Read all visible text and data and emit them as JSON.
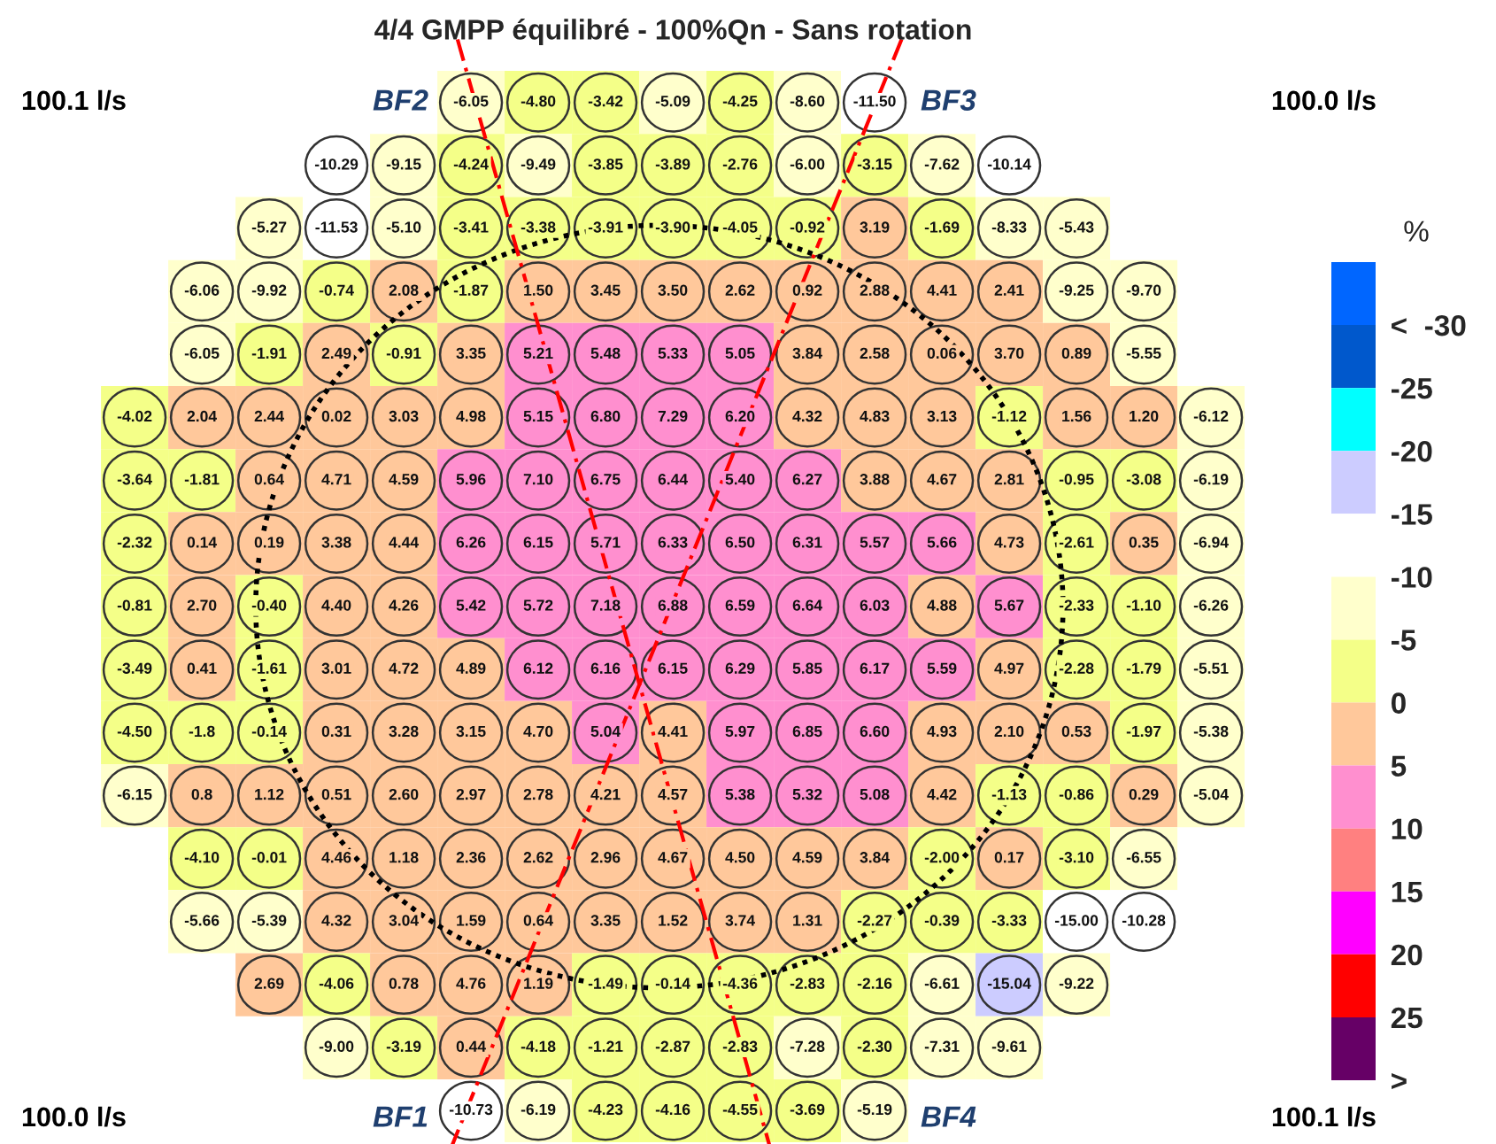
{
  "chart_data": {
    "type": "heatmap",
    "title": "4/4 GMPP équilibré - 100%Qn - Sans rotation",
    "clabel": "%",
    "categories": [
      null,
      null,
      null,
      null,
      null,
      null,
      null,
      null,
      null,
      null,
      null,
      null,
      null,
      null,
      null,
      null,
      null
    ],
    "y_categories": [
      null,
      null,
      null,
      null,
      null,
      null,
      null,
      null,
      null,
      null,
      null,
      null,
      null,
      null,
      null,
      null,
      null
    ],
    "clim": [
      30,
      -35
    ],
    "cticks": [
      {
        "value": -30,
        "label": "<  -30"
      },
      -25,
      -20,
      -15,
      -10,
      -5,
      0,
      5,
      10,
      15,
      20,
      25,
      {
        "value": 30,
        "label": ">"
      }
    ],
    "colors": [
      "#0066ff",
      "#0058cc",
      "#00ffff",
      "#ccccff",
      "#ffffff",
      "#ffffcc",
      "#f4ff88",
      "#ffc89b",
      "#ff8fcf",
      "#ff8080",
      "#ff00ff",
      "#ff0000",
      "#660066"
    ],
    "annotations": [
      "100.1 l/s",
      "100.0 l/s",
      "100.0 l/s",
      "100.1 l/s",
      "BF2",
      "BF3",
      "BF1",
      "BF4"
    ],
    "cells": [
      [
        null,
        null,
        null,
        null,
        null,
        -6.05,
        -4.8,
        -3.42,
        -5.09,
        -4.25,
        -8.6,
        -11.5,
        null,
        null,
        null,
        null,
        null
      ],
      [
        null,
        null,
        null,
        -10.29,
        -9.15,
        -4.24,
        -9.49,
        -3.85,
        -3.89,
        -2.76,
        -6.0,
        -3.15,
        -7.62,
        -10.14,
        null,
        null,
        null
      ],
      [
        null,
        null,
        -5.27,
        -11.53,
        -5.1,
        -3.41,
        -3.38,
        -3.91,
        -3.9,
        -4.05,
        -0.92,
        3.19,
        -1.69,
        -8.33,
        -5.43,
        null,
        null
      ],
      [
        null,
        -6.06,
        -9.92,
        -0.74,
        2.08,
        -1.87,
        1.5,
        3.45,
        3.5,
        2.62,
        0.92,
        2.88,
        4.41,
        2.41,
        -9.25,
        -9.7,
        null
      ],
      [
        null,
        -6.05,
        -1.91,
        2.49,
        -0.91,
        3.35,
        5.21,
        5.48,
        5.33,
        5.05,
        3.84,
        2.58,
        0.06,
        3.7,
        0.89,
        -5.55,
        null
      ],
      [
        -4.02,
        2.04,
        2.44,
        0.02,
        3.03,
        4.98,
        5.15,
        6.8,
        7.29,
        6.2,
        4.32,
        4.83,
        3.13,
        -1.12,
        1.56,
        1.2,
        -6.12
      ],
      [
        -3.64,
        -1.81,
        0.64,
        4.71,
        4.59,
        5.96,
        7.1,
        6.75,
        6.44,
        5.4,
        6.27,
        3.88,
        4.67,
        2.81,
        -0.95,
        -3.08,
        -6.19
      ],
      [
        -2.32,
        0.14,
        0.19,
        3.38,
        4.44,
        6.26,
        6.15,
        5.71,
        6.33,
        6.5,
        6.31,
        5.57,
        5.66,
        4.73,
        -2.61,
        0.35,
        -6.94
      ],
      [
        -0.81,
        2.7,
        -0.4,
        4.4,
        4.26,
        5.42,
        5.72,
        7.18,
        6.88,
        6.59,
        6.64,
        6.03,
        4.88,
        5.67,
        -2.33,
        -1.1,
        -6.26
      ],
      [
        -3.49,
        0.41,
        -1.61,
        3.01,
        4.72,
        4.89,
        6.12,
        6.16,
        6.15,
        6.29,
        5.85,
        6.17,
        5.59,
        4.97,
        -2.28,
        -1.79,
        -5.51
      ],
      [
        -4.5,
        -1.8,
        -0.14,
        0.31,
        3.28,
        3.15,
        4.7,
        5.04,
        4.41,
        5.97,
        6.85,
        6.6,
        4.93,
        2.1,
        0.53,
        -1.97,
        -5.38
      ],
      [
        -6.15,
        0.8,
        1.12,
        0.51,
        2.6,
        2.97,
        2.78,
        4.21,
        4.57,
        5.38,
        5.32,
        5.08,
        4.42,
        -1.13,
        -0.86,
        0.29,
        -5.04
      ],
      [
        null,
        -4.1,
        -0.01,
        4.46,
        1.18,
        2.36,
        2.62,
        2.96,
        4.67,
        4.5,
        4.59,
        3.84,
        -2.0,
        0.17,
        -3.1,
        -6.55,
        null
      ],
      [
        null,
        -5.66,
        -5.39,
        4.32,
        3.04,
        1.59,
        0.64,
        3.35,
        1.52,
        3.74,
        1.31,
        -2.27,
        -0.39,
        -3.33,
        -15.0,
        -10.28,
        null
      ],
      [
        null,
        null,
        2.69,
        -4.06,
        0.78,
        4.76,
        1.19,
        -1.49,
        -0.14,
        -4.36,
        -2.83,
        -2.16,
        -6.61,
        -15.04,
        -9.22,
        null,
        null
      ],
      [
        null,
        null,
        null,
        -9.0,
        -3.19,
        0.44,
        -4.18,
        -1.21,
        -2.87,
        -2.83,
        -7.28,
        -2.3,
        -7.31,
        -9.61,
        null,
        null,
        null
      ],
      [
        null,
        null,
        null,
        null,
        null,
        -10.73,
        -6.19,
        -4.23,
        -4.16,
        -4.55,
        -3.69,
        -5.19,
        null,
        null,
        null,
        null,
        null
      ]
    ],
    "cell_labels": [
      [
        null,
        null,
        null,
        null,
        null,
        "-6.05",
        "-4.80",
        "-3.42",
        "-5.09",
        "-4.25",
        "-8.60",
        "-11.50",
        null,
        null,
        null,
        null,
        null
      ],
      [
        null,
        null,
        null,
        "-10.29",
        "-9.15",
        "-4.24",
        "-9.49",
        "-3.85",
        "-3.89",
        "-2.76",
        "-6.00",
        "-3.15",
        "-7.62",
        "-10.14",
        null,
        null,
        null
      ],
      [
        null,
        null,
        "-5.27",
        "-11.53",
        "-5.10",
        "-3.41",
        "-3.38",
        "-3.91",
        "-3.90",
        "-4.05",
        "-0.92",
        "3.19",
        "-1.69",
        "-8.33",
        "-5.43",
        null,
        null
      ],
      [
        null,
        "-6.06",
        "-9.92",
        "-0.74",
        "2.08",
        "-1.87",
        "1.50",
        "3.45",
        "3.50",
        "2.62",
        "0.92",
        "2.88",
        "4.41",
        "2.41",
        "-9.25",
        "-9.70",
        null
      ],
      [
        null,
        "-6.05",
        "-1.91",
        "2.49",
        "-0.91",
        "3.35",
        "5.21",
        "5.48",
        "5.33",
        "5.05",
        "3.84",
        "2.58",
        "0.06",
        "3.70",
        "0.89",
        "-5.55",
        null
      ],
      [
        "-4.02",
        "2.04",
        "2.44",
        "0.02",
        "3.03",
        "4.98",
        "5.15",
        "6.80",
        "7.29",
        "6.20",
        "4.32",
        "4.83",
        "3.13",
        "-1.12",
        "1.56",
        "1.20",
        "-6.12"
      ],
      [
        "-3.64",
        "-1.81",
        "0.64",
        "4.71",
        "4.59",
        "5.96",
        "7.10",
        "6.75",
        "6.44",
        "5.40",
        "6.27",
        "3.88",
        "4.67",
        "2.81",
        "-0.95",
        "-3.08",
        "-6.19"
      ],
      [
        "-2.32",
        "0.14",
        "0.19",
        "3.38",
        "4.44",
        "6.26",
        "6.15",
        "5.71",
        "6.33",
        "6.50",
        "6.31",
        "5.57",
        "5.66",
        "4.73",
        "-2.61",
        "0.35",
        "-6.94"
      ],
      [
        "-0.81",
        "2.70",
        "-0.40",
        "4.40",
        "4.26",
        "5.42",
        "5.72",
        "7.18",
        "6.88",
        "6.59",
        "6.64",
        "6.03",
        "4.88",
        "5.67",
        "-2.33",
        "-1.10",
        "-6.26"
      ],
      [
        "-3.49",
        "0.41",
        "-1.61",
        "3.01",
        "4.72",
        "4.89",
        "6.12",
        "6.16",
        "6.15",
        "6.29",
        "5.85",
        "6.17",
        "5.59",
        "4.97",
        "-2.28",
        "-1.79",
        "-5.51"
      ],
      [
        "-4.50",
        "-1.8",
        "-0.14",
        "0.31",
        "3.28",
        "3.15",
        "4.70",
        "5.04",
        "4.41",
        "5.97",
        "6.85",
        "6.60",
        "4.93",
        "2.10",
        "0.53",
        "-1.97",
        "-5.38"
      ],
      [
        "-6.15",
        "0.8",
        "1.12",
        "0.51",
        "2.60",
        "2.97",
        "2.78",
        "4.21",
        "4.57",
        "5.38",
        "5.32",
        "5.08",
        "4.42",
        "-1.13",
        "-0.86",
        "0.29",
        "-5.04"
      ],
      [
        null,
        "-4.10",
        "-0.01",
        "4.46",
        "1.18",
        "2.36",
        "2.62",
        "2.96",
        "4.67",
        "4.50",
        "4.59",
        "3.84",
        "-2.00",
        "0.17",
        "-3.10",
        "-6.55",
        null
      ],
      [
        null,
        "-5.66",
        "-5.39",
        "4.32",
        "3.04",
        "1.59",
        "0.64",
        "3.35",
        "1.52",
        "3.74",
        "1.31",
        "-2.27",
        "-0.39",
        "-3.33",
        "-15.00",
        "-10.28",
        null
      ],
      [
        null,
        null,
        "2.69",
        "-4.06",
        "0.78",
        "4.76",
        "1.19",
        "-1.49",
        "-0.14",
        "-4.36",
        "-2.83",
        "-2.16",
        "-6.61",
        "-15.04",
        "-9.22",
        null,
        null
      ],
      [
        null,
        null,
        null,
        "-9.00",
        "-3.19",
        "0.44",
        "-4.18",
        "-1.21",
        "-2.87",
        "-2.83",
        "-7.28",
        "-2.30",
        "-7.31",
        "-9.61",
        null,
        null,
        null
      ],
      [
        null,
        null,
        null,
        null,
        null,
        "-10.73",
        "-6.19",
        "-4.23",
        "-4.16",
        "-4.55",
        "-3.69",
        "-5.19",
        null,
        null,
        null,
        null,
        null
      ]
    ]
  }
}
